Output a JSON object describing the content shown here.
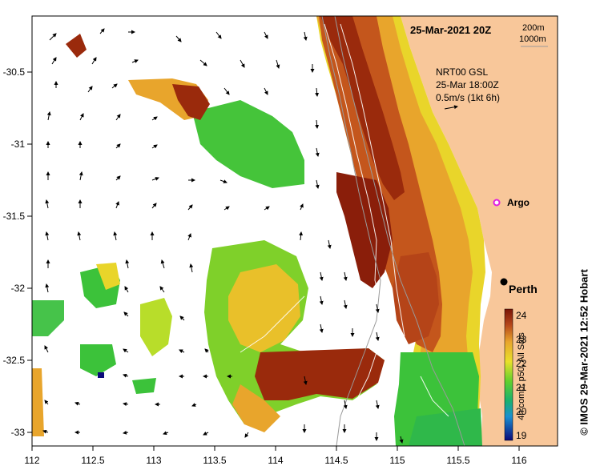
{
  "header": {
    "date_label": "25-Mar-2021 20Z",
    "depth_200": "200m",
    "depth_1000": "1000m"
  },
  "currents": {
    "product": "NRT00 GSL",
    "time": "25-Mar 18:00Z",
    "scale": "0.5m/s (1kt 6h)"
  },
  "markers": {
    "argo_label": "Argo",
    "city_label": "Perth"
  },
  "colorbar": {
    "label": "4h comp, p50, All Sats",
    "ticks": [
      "24",
      "23",
      "22",
      "21",
      "20",
      "19"
    ]
  },
  "credit": "© IMOS 29-Mar-2021 12:52 Hobart",
  "axes": {
    "x_ticks": [
      "112",
      "112.5",
      "113",
      "113.5",
      "114",
      "114.5",
      "115",
      "115.5",
      "116"
    ],
    "y_ticks": [
      "-30.5",
      "-31",
      "-31.5",
      "-32",
      "-32.5",
      "-33"
    ]
  },
  "colors": {
    "land": "#f8c79a",
    "sst_warm": "#9a2a0c",
    "sst_mid": "#e8c321",
    "sst_cool": "#3cc23a"
  }
}
